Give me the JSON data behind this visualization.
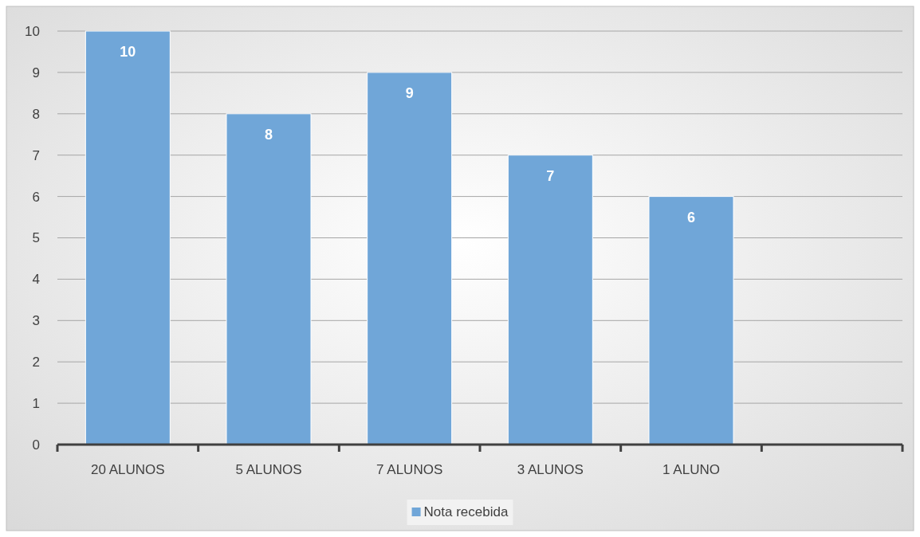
{
  "chart_data": {
    "type": "bar",
    "categories": [
      "20 ALUNOS",
      "5 ALUNOS",
      "7 ALUNOS",
      "3 ALUNOS",
      "1 ALUNO",
      null
    ],
    "series": [
      {
        "name": "Nota recebida",
        "color": "#70a6d8",
        "values": [
          10,
          8,
          9,
          7,
          6,
          null
        ]
      }
    ],
    "ylim": [
      0,
      10
    ],
    "yticks": [
      0,
      1,
      2,
      3,
      4,
      5,
      6,
      7,
      8,
      9,
      10
    ],
    "grid": "y",
    "legend": "bottom",
    "data_labels": true
  }
}
